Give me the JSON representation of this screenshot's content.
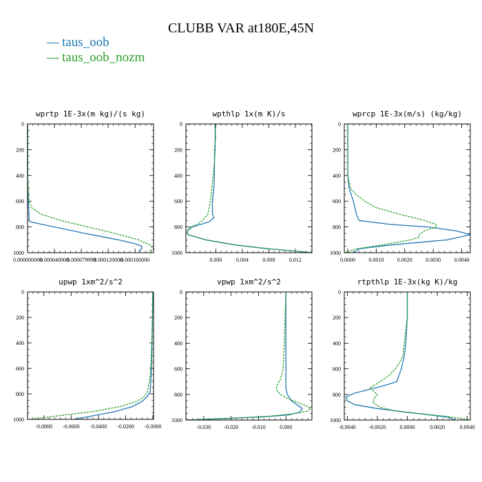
{
  "title": "CLUBB VAR at180E,45N",
  "legend": [
    {
      "label": "taus_oob",
      "color": "#1f77b4"
    },
    {
      "label": "taus_oob_nozm",
      "color": "#2ca02c"
    }
  ],
  "chart_data": [
    {
      "type": "line",
      "title": "wprtp  1E-3x(m kg)/(s kg)",
      "xlim": [
        0.0,
        0.0001875
      ],
      "ylim": [
        1000,
        0
      ],
      "xticks": [
        0.0,
        4e-05,
        8e-05,
        0.00012,
        0.00016
      ],
      "xtick_labels": [
        "0.000000000",
        "0.000040000",
        "0.000079999",
        "0.000120000",
        "0.000160000"
      ],
      "yticks": [
        0,
        200,
        400,
        600,
        800,
        1000
      ],
      "ytick_labels": [
        "0",
        "200",
        "400",
        "600",
        "800",
        "1000"
      ],
      "series": [
        {
          "name": "taus_oob",
          "y": [
            0,
            100,
            200,
            300,
            400,
            500,
            600,
            700,
            740,
            760,
            800,
            850,
            900,
            930,
            950,
            965,
            980,
            992
          ],
          "x": [
            0.0,
            0.0,
            0.0,
            0.0,
            0.0,
            5e-07,
            1e-06,
            2e-06,
            2e-06,
            4e-06,
            4e-05,
            8.5e-05,
            0.000135,
            0.00016,
            0.00017,
            0.00017,
            0.000167,
            0.000165
          ]
        },
        {
          "name": "taus_oob_nozm",
          "y": [
            0,
            100,
            200,
            300,
            400,
            500,
            600,
            650,
            700,
            750,
            800,
            850,
            900,
            940,
            970,
            990
          ],
          "x": [
            0.0,
            0.0,
            0.0,
            0.0,
            0.0,
            1e-06,
            2e-06,
            6e-06,
            2e-05,
            5e-05,
            9e-05,
            0.00013,
            0.000165,
            0.000182,
            0.000188,
            0.00018
          ]
        }
      ]
    },
    {
      "type": "line",
      "title": "wpthlp  1x(m K)/s",
      "xlim": [
        -0.0045,
        0.0145
      ],
      "ylim": [
        1000,
        0
      ],
      "xticks": [
        0.0,
        0.004,
        0.008,
        0.012
      ],
      "xtick_labels": [
        "0.000",
        "0.004",
        "0.008",
        "0.012"
      ],
      "yticks": [
        0,
        200,
        400,
        600,
        800,
        1000
      ],
      "ytick_labels": [
        "0",
        "200",
        "400",
        "600",
        "800",
        "1000"
      ],
      "series": [
        {
          "name": "taus_oob",
          "y": [
            0,
            100,
            200,
            300,
            400,
            500,
            600,
            700,
            730,
            760,
            800,
            830,
            860,
            900,
            940,
            970,
            990,
            1000
          ],
          "x": [
            -0.0001,
            -0.0001,
            -0.0001,
            -0.0002,
            -0.0002,
            -0.0003,
            -0.0005,
            -0.0005,
            -0.0003,
            -0.001,
            -0.0035,
            -0.0043,
            -0.0042,
            -0.0015,
            0.003,
            0.008,
            0.0125,
            0.0145
          ]
        },
        {
          "name": "taus_oob_nozm",
          "y": [
            0,
            100,
            200,
            300,
            400,
            500,
            600,
            700,
            750,
            780,
            800,
            830,
            860,
            900,
            940,
            970,
            990,
            1000
          ],
          "x": [
            -0.0001,
            0.0,
            -0.0002,
            -0.0002,
            -0.0004,
            -0.0006,
            -0.0008,
            -0.0012,
            -0.002,
            -0.0028,
            -0.0038,
            -0.0043,
            -0.0042,
            -0.0016,
            0.003,
            0.008,
            0.0125,
            0.0145
          ]
        }
      ]
    },
    {
      "type": "line",
      "title": "wprcp  1E-3x(m/s) (kg/kg)",
      "xlim": [
        -0.00012,
        0.0043
      ],
      "ylim": [
        1000,
        0
      ],
      "xticks": [
        0.0,
        0.001,
        0.002,
        0.003,
        0.004
      ],
      "xtick_labels": [
        "0.0000",
        "0.0010",
        "0.0020",
        "0.0030",
        "0.0040"
      ],
      "yticks": [
        0,
        200,
        400,
        600,
        800,
        1000
      ],
      "ytick_labels": [
        "0",
        "200",
        "400",
        "600",
        "800",
        "1000"
      ],
      "series": [
        {
          "name": "taus_oob",
          "y": [
            0,
            100,
            200,
            300,
            400,
            500,
            600,
            700,
            750,
            780,
            800,
            830,
            860,
            900,
            940,
            970,
            1000
          ],
          "x": [
            0.0,
            0.0,
            0.0,
            0.0,
            0.0,
            5e-05,
            0.0002,
            0.0003,
            0.0004,
            0.0015,
            0.0028,
            0.0038,
            0.0043,
            0.0035,
            0.0015,
            0.0004,
            0.0002
          ]
        },
        {
          "name": "taus_oob_nozm",
          "y": [
            0,
            100,
            200,
            300,
            400,
            500,
            550,
            600,
            650,
            700,
            750,
            780,
            800,
            830,
            860,
            880,
            900,
            940,
            970,
            1000
          ],
          "x": [
            0.0,
            0.0,
            0.0,
            0.0,
            0.0,
            0.0001,
            0.0003,
            0.0006,
            0.001,
            0.0018,
            0.0027,
            0.0031,
            0.0031,
            0.0027,
            0.0025,
            0.0025,
            0.0022,
            0.0012,
            0.0003,
            -0.0001
          ]
        }
      ]
    },
    {
      "type": "line",
      "title": "upwp  1xm^2/s^2",
      "xlim": [
        -0.092,
        0.0005
      ],
      "ylim": [
        1000,
        0
      ],
      "xticks": [
        -0.08,
        -0.06,
        -0.04,
        -0.02,
        0.0
      ],
      "xtick_labels": [
        "-0.0800",
        "-0.0600",
        "-0.0400",
        "-0.0200",
        "-0.0000"
      ],
      "yticks": [
        0,
        200,
        400,
        600,
        800,
        1000
      ],
      "ytick_labels": [
        "0",
        "200",
        "400",
        "600",
        "800",
        "1000"
      ],
      "series": [
        {
          "name": "taus_oob",
          "y": [
            0,
            200,
            400,
            600,
            700,
            780,
            820,
            860,
            900,
            940,
            970,
            1000
          ],
          "x": [
            0.0,
            -0.0003,
            -0.0006,
            -0.001,
            -0.0015,
            -0.002,
            -0.004,
            -0.008,
            -0.015,
            -0.028,
            -0.043,
            -0.058
          ]
        },
        {
          "name": "taus_oob_nozm",
          "y": [
            0,
            200,
            400,
            600,
            700,
            780,
            820,
            860,
            900,
            940,
            970,
            1000
          ],
          "x": [
            0.0,
            -0.0003,
            -0.0008,
            -0.0015,
            -0.0025,
            -0.004,
            -0.006,
            -0.012,
            -0.024,
            -0.045,
            -0.068,
            -0.09
          ]
        }
      ]
    },
    {
      "type": "line",
      "title": "vpwp  1xm^2/s^2",
      "xlim": [
        -0.0365,
        0.0095
      ],
      "ylim": [
        1000,
        0
      ],
      "xticks": [
        -0.03,
        -0.02,
        -0.01,
        0.0
      ],
      "xtick_labels": [
        "-0.030",
        "-0.020",
        "-0.010",
        "0.000"
      ],
      "yticks": [
        0,
        200,
        400,
        600,
        800,
        1000
      ],
      "ytick_labels": [
        "0",
        "200",
        "400",
        "600",
        "800",
        "1000"
      ],
      "series": [
        {
          "name": "taus_oob",
          "y": [
            0,
            200,
            400,
            600,
            700,
            750,
            800,
            850,
            880,
            910,
            940,
            960,
            975,
            990,
            1000
          ],
          "x": [
            0.0,
            0.0,
            0.0,
            0.0,
            0.0,
            0.0,
            0.0005,
            0.002,
            0.004,
            0.006,
            0.005,
            0.001,
            -0.008,
            -0.025,
            -0.036
          ]
        },
        {
          "name": "taus_oob_nozm",
          "y": [
            0,
            200,
            400,
            600,
            680,
            720,
            750,
            780,
            800,
            830,
            860,
            890,
            910,
            930,
            950,
            970,
            990,
            1000
          ],
          "x": [
            0.0,
            -0.0003,
            -0.0006,
            -0.001,
            -0.002,
            -0.003,
            -0.0035,
            -0.003,
            -0.002,
            0.0005,
            0.004,
            0.0075,
            0.009,
            0.008,
            0.003,
            -0.006,
            -0.022,
            -0.036
          ]
        }
      ]
    },
    {
      "type": "line",
      "title": "rtpthlp  1E-3x(kg K)/kg",
      "xlim": [
        -0.0042,
        0.0042
      ],
      "ylim": [
        1000,
        0
      ],
      "xticks": [
        -0.004,
        -0.002,
        0.0,
        0.002,
        0.004
      ],
      "xtick_labels": [
        "-0.0040",
        "-0.0020",
        "0.0000",
        "0.0020",
        "0.0040"
      ],
      "yticks": [
        0,
        200,
        400,
        600,
        800,
        1000
      ],
      "ytick_labels": [
        "0",
        "200",
        "400",
        "600",
        "800",
        "1000"
      ],
      "series": [
        {
          "name": "taus_oob",
          "y": [
            0,
            200,
            400,
            500,
            600,
            700,
            730,
            760,
            790,
            820,
            850,
            880,
            910,
            940,
            960,
            980,
            1000
          ],
          "x": [
            0.0,
            0.0,
            -0.0001,
            -0.0002,
            -0.0004,
            -0.0007,
            -0.0015,
            -0.0025,
            -0.0035,
            -0.0041,
            -0.004,
            -0.0035,
            -0.002,
            0.0,
            0.0015,
            0.0028,
            0.0032
          ]
        },
        {
          "name": "taus_oob_nozm",
          "y": [
            0,
            200,
            400,
            500,
            550,
            600,
            650,
            700,
            750,
            780,
            800,
            830,
            860,
            880,
            900,
            930,
            950,
            970,
            990,
            1000
          ],
          "x": [
            0.0,
            0.0,
            -0.0002,
            -0.0003,
            -0.0005,
            -0.0008,
            -0.0012,
            -0.0018,
            -0.0025,
            -0.0022,
            -0.002,
            -0.0022,
            -0.0023,
            -0.0021,
            -0.0018,
            -0.0008,
            0.0008,
            0.0025,
            0.0037,
            0.0042
          ]
        }
      ]
    }
  ]
}
